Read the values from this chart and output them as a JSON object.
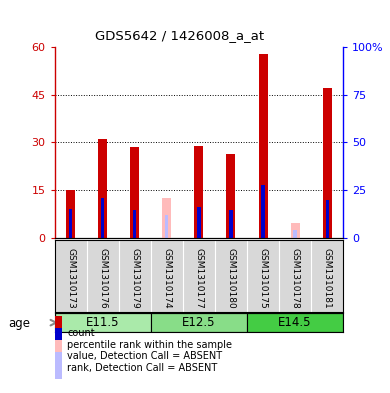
{
  "title": "GDS5642 / 1426008_a_at",
  "samples": [
    "GSM1310173",
    "GSM1310176",
    "GSM1310179",
    "GSM1310174",
    "GSM1310177",
    "GSM1310180",
    "GSM1310175",
    "GSM1310178",
    "GSM1310181"
  ],
  "groups": [
    {
      "label": "E11.5",
      "indices": [
        0,
        1,
        2
      ],
      "color": "#aaeaaa"
    },
    {
      "label": "E12.5",
      "indices": [
        3,
        4,
        5
      ],
      "color": "#88dd88"
    },
    {
      "label": "E14.5",
      "indices": [
        6,
        7,
        8
      ],
      "color": "#44cc44"
    }
  ],
  "count_values": [
    15.0,
    31.0,
    28.5,
    0.0,
    29.0,
    26.5,
    58.0,
    0.0,
    47.0
  ],
  "rank_values": [
    15.0,
    21.0,
    14.5,
    0.0,
    16.0,
    14.5,
    27.5,
    0.0,
    20.0
  ],
  "absent_count": [
    0.0,
    0.0,
    0.0,
    12.5,
    0.0,
    0.0,
    0.0,
    4.5,
    0.0
  ],
  "absent_rank": [
    0.0,
    0.0,
    0.0,
    12.0,
    0.0,
    0.0,
    0.0,
    4.0,
    0.0
  ],
  "bar_color_count": "#cc0000",
  "bar_color_rank": "#0000cc",
  "bar_color_absent_count": "#ffbbbb",
  "bar_color_absent_rank": "#bbbbff",
  "ylim_left": [
    0,
    60
  ],
  "ylim_right": [
    0,
    100
  ],
  "yticks_left": [
    0,
    15,
    30,
    45,
    60
  ],
  "yticks_right": [
    0,
    25,
    50,
    75,
    100
  ],
  "age_label": "age",
  "legend_items": [
    {
      "label": "count",
      "color": "#cc0000"
    },
    {
      "label": "percentile rank within the sample",
      "color": "#0000cc"
    },
    {
      "label": "value, Detection Call = ABSENT",
      "color": "#ffbbbb"
    },
    {
      "label": "rank, Detection Call = ABSENT",
      "color": "#bbbbff"
    }
  ]
}
